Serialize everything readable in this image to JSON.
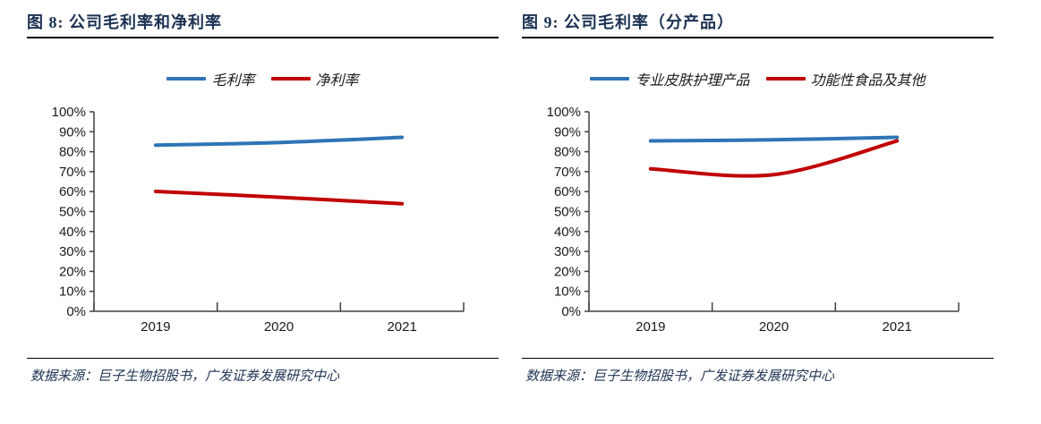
{
  "colors": {
    "blue_series": "#2E75B6",
    "red_series": "#C00000",
    "title_navy": "#1B3152",
    "source_navy": "#1F3353",
    "axis": "#404040",
    "tick_label": "#1a1a1a",
    "rule_black": "#000000",
    "background": "#ffffff"
  },
  "chart_data": [
    {
      "type": "line",
      "title": "图 8:  公司毛利率和净利率",
      "categories": [
        "2019",
        "2020",
        "2021"
      ],
      "series": [
        {
          "name": "毛利率",
          "color": "#2E75B6",
          "values": [
            83.3,
            84.6,
            87.2
          ],
          "smooth": true
        },
        {
          "name": "净利率",
          "color": "#C00000",
          "values": [
            60.1,
            57.2,
            53.9
          ],
          "smooth": true
        }
      ],
      "ylim": [
        0,
        100
      ],
      "ytick_step": 10,
      "ytick_suffix": "%",
      "grid": false,
      "legend_position": "top",
      "source": "数据来源：巨子生物招股书，广发证券发展研究中心"
    },
    {
      "type": "line",
      "title": "图 9:  公司毛利率（分产品）",
      "categories": [
        "2019",
        "2020",
        "2021"
      ],
      "series": [
        {
          "name": "专业皮肤护理产品",
          "color": "#2E75B6",
          "values": [
            85.4,
            86.0,
            87.2
          ],
          "smooth": true
        },
        {
          "name": "功能性食品及其他",
          "color": "#C00000",
          "values": [
            71.4,
            68.5,
            85.4
          ],
          "smooth": true
        }
      ],
      "ylim": [
        0,
        100
      ],
      "ytick_step": 10,
      "ytick_suffix": "%",
      "grid": false,
      "legend_position": "top",
      "source": "数据来源：巨子生物招股书，广发证券发展研究中心"
    }
  ]
}
